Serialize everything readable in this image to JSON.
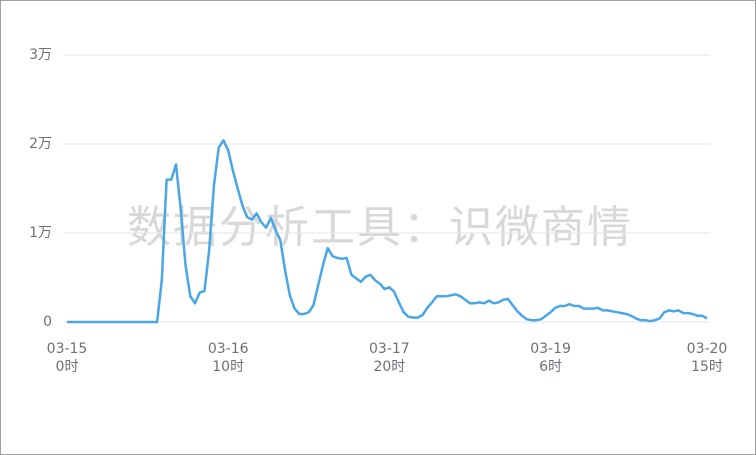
{
  "chart_data": {
    "type": "line",
    "watermark": "数据分析工具：识微商情",
    "color": "#4aa6e6",
    "grid": true,
    "ylim": [
      0,
      30000
    ],
    "yticks": [
      0,
      {
        "value": 10000,
        "label": "1万"
      },
      {
        "value": 20000,
        "label": "2万"
      },
      {
        "value": 30000,
        "label": "3万"
      }
    ],
    "categories": [
      "03-15\n0时",
      null,
      null,
      null,
      null,
      null,
      null,
      null,
      null,
      null,
      null,
      null,
      null,
      null,
      null,
      null,
      null,
      null,
      null,
      null,
      null,
      null,
      null,
      null,
      null,
      null,
      null,
      null,
      null,
      null,
      null,
      null,
      null,
      null,
      "03-16\n10时",
      null,
      null,
      null,
      null,
      null,
      null,
      null,
      null,
      null,
      null,
      null,
      null,
      null,
      null,
      null,
      null,
      null,
      null,
      null,
      null,
      null,
      null,
      null,
      null,
      null,
      null,
      null,
      null,
      null,
      null,
      null,
      null,
      null,
      "03-17\n20时",
      null,
      null,
      null,
      null,
      null,
      null,
      null,
      null,
      null,
      null,
      null,
      null,
      null,
      null,
      null,
      null,
      null,
      null,
      null,
      null,
      null,
      null,
      null,
      null,
      null,
      null,
      null,
      null,
      null,
      null,
      null,
      null,
      null,
      "03-19\n6时",
      null,
      null,
      null,
      null,
      null,
      null,
      null,
      null,
      null,
      null,
      null,
      null,
      null,
      null,
      null,
      null,
      null,
      null,
      null,
      null,
      null,
      null,
      null,
      null,
      null,
      null,
      null,
      null,
      null,
      null,
      null,
      null,
      "03-20\n15时"
    ],
    "values": [
      0,
      0,
      0,
      0,
      0,
      0,
      0,
      0,
      0,
      0,
      0,
      0,
      0,
      0,
      0,
      0,
      0,
      0,
      0,
      0,
      4700,
      16000,
      16000,
      17700,
      12600,
      6400,
      2900,
      2100,
      3300,
      3500,
      8100,
      15400,
      19600,
      20400,
      19300,
      17000,
      15000,
      13100,
      11800,
      11500,
      12200,
      11200,
      10600,
      11700,
      10300,
      9200,
      5800,
      3000,
      1500,
      900,
      900,
      1100,
      1900,
      4200,
      6400,
      8300,
      7400,
      7200,
      7100,
      7200,
      5300,
      4900,
      4500,
      5100,
      5300,
      4700,
      4300,
      3700,
      3900,
      3400,
      2200,
      1100,
      600,
      500,
      500,
      800,
      1600,
      2200,
      2900,
      2900,
      2900,
      3000,
      3100,
      2900,
      2500,
      2100,
      2100,
      2200,
      2100,
      2400,
      2100,
      2200,
      2500,
      2600,
      1900,
      1200,
      700,
      300,
      200,
      200,
      300,
      700,
      1100,
      1600,
      1800,
      1800,
      2000,
      1800,
      1800,
      1500,
      1500,
      1500,
      1600,
      1300,
      1300,
      1200,
      1100,
      1000,
      900,
      700,
      400,
      200,
      200,
      100,
      200,
      400,
      1100,
      1300,
      1200,
      1300,
      1000,
      1000,
      900,
      700,
      700,
      400
    ]
  }
}
